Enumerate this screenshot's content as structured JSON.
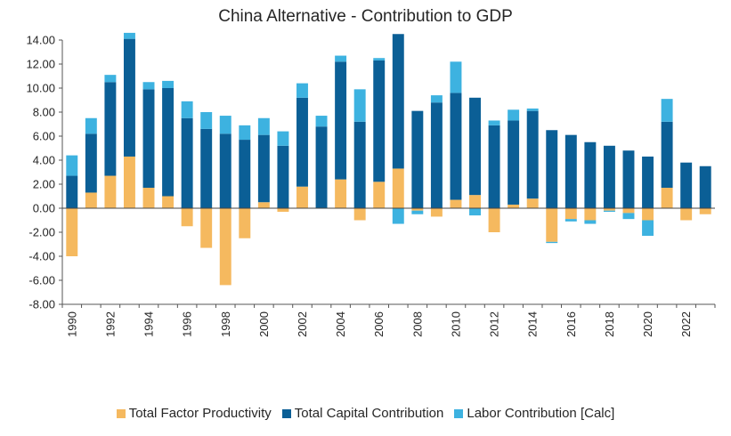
{
  "chart_data": {
    "type": "bar",
    "stacked": true,
    "title": "China Alternative - Contribution to GDP",
    "xlabel": "",
    "ylabel": "",
    "ylim": [
      -8,
      14
    ],
    "yticks": [
      "14.00",
      "12.00",
      "10.00",
      "8.00",
      "6.00",
      "4.00",
      "2.00",
      "0.00",
      "-2.00",
      "-4.00",
      "-6.00",
      "-8.00"
    ],
    "xtick_labels": [
      "1990",
      "1992",
      "1994",
      "1996",
      "1998",
      "2000",
      "2002",
      "2004",
      "2006",
      "2008",
      "2010",
      "2012",
      "2014",
      "2016",
      "2018",
      "2020",
      "2022"
    ],
    "categories": [
      1990,
      1991,
      1992,
      1993,
      1994,
      1995,
      1996,
      1997,
      1998,
      1999,
      2000,
      2001,
      2002,
      2003,
      2004,
      2005,
      2006,
      2007,
      2008,
      2009,
      2010,
      2011,
      2012,
      2013,
      2014,
      2015,
      2016,
      2017,
      2018,
      2019,
      2020,
      2021,
      2022,
      2023
    ],
    "legend_position": "bottom",
    "series": [
      {
        "name": "Total Factor Productivity",
        "color": "#F5B95F",
        "values": [
          -4.0,
          1.3,
          2.7,
          4.3,
          1.7,
          1.0,
          -1.5,
          -3.3,
          -6.4,
          -2.5,
          0.5,
          -0.3,
          1.8,
          0.0,
          2.4,
          -1.0,
          2.2,
          3.3,
          -0.2,
          -0.7,
          0.7,
          1.1,
          -2.0,
          0.3,
          0.8,
          -2.8,
          -0.9,
          -1.0,
          -0.2,
          -0.4,
          -1.0,
          1.7,
          -1.0,
          -0.5
        ]
      },
      {
        "name": "Total Capital Contribution",
        "color": "#0B5F96",
        "values": [
          2.7,
          4.9,
          7.8,
          9.8,
          8.2,
          9.0,
          7.5,
          6.6,
          6.2,
          5.7,
          5.6,
          5.2,
          7.4,
          6.8,
          9.8,
          7.2,
          10.1,
          11.2,
          8.1,
          8.8,
          8.9,
          8.1,
          6.9,
          7.0,
          7.3,
          6.5,
          6.1,
          5.5,
          5.2,
          4.8,
          4.3,
          5.5,
          3.8,
          3.5
        ]
      },
      {
        "name": "Labor Contribution [Calc]",
        "color": "#3DB2E0",
        "values": [
          1.7,
          1.3,
          0.6,
          0.5,
          0.6,
          0.6,
          1.4,
          1.4,
          1.5,
          1.2,
          1.4,
          1.2,
          1.2,
          0.9,
          0.5,
          2.7,
          0.2,
          -1.3,
          -0.3,
          0.6,
          2.6,
          -0.6,
          0.4,
          0.9,
          0.2,
          -0.1,
          -0.2,
          -0.3,
          -0.1,
          -0.5,
          -1.3,
          1.9,
          0.0,
          0.0
        ]
      }
    ]
  }
}
